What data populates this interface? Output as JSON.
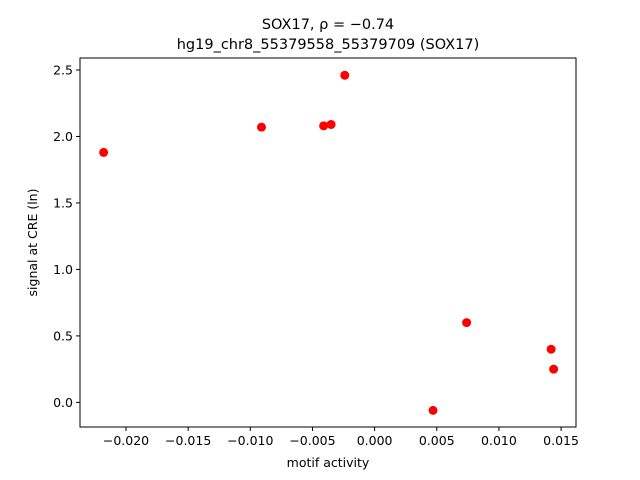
{
  "chart_data": {
    "type": "scatter",
    "title": "SOX17, ρ = −0.74",
    "subtitle": "hg19_chr8_55379558_55379709 (SOX17)",
    "xlabel": "motif activity",
    "ylabel": "signal at CRE (ln)",
    "xlim": [
      -0.0237,
      0.0162
    ],
    "ylim": [
      -0.185,
      2.59
    ],
    "xticks": [
      -0.02,
      -0.015,
      -0.01,
      -0.005,
      0.0,
      0.005,
      0.01,
      0.015
    ],
    "xtick_labels": [
      "−0.020",
      "−0.015",
      "−0.010",
      "−0.005",
      "0.000",
      "0.005",
      "0.010",
      "0.015"
    ],
    "yticks": [
      0.0,
      0.5,
      1.0,
      1.5,
      2.0,
      2.5
    ],
    "ytick_labels": [
      "0.0",
      "0.5",
      "1.0",
      "1.5",
      "2.0",
      "2.5"
    ],
    "grid": false,
    "marker_color": "#ff0000",
    "points": [
      {
        "x": -0.0218,
        "y": 1.88
      },
      {
        "x": -0.0091,
        "y": 2.07
      },
      {
        "x": -0.0041,
        "y": 2.08
      },
      {
        "x": -0.0035,
        "y": 2.09
      },
      {
        "x": -0.0024,
        "y": 2.46
      },
      {
        "x": 0.0047,
        "y": -0.06
      },
      {
        "x": 0.0074,
        "y": 0.6
      },
      {
        "x": 0.0142,
        "y": 0.4
      },
      {
        "x": 0.0144,
        "y": 0.25
      }
    ]
  }
}
